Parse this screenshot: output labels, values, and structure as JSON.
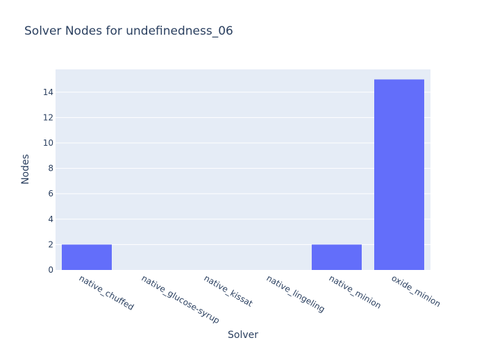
{
  "chart_data": {
    "type": "bar",
    "title": "Solver Nodes for undefinedness_06",
    "xlabel": "Solver",
    "ylabel": "Nodes",
    "categories": [
      "native_chuffed",
      "native_glucose-syrup",
      "native_kissat",
      "native_lingeling",
      "native_minion",
      "oxide_minion"
    ],
    "values": [
      2,
      0,
      0,
      0,
      2,
      15
    ],
    "ylim": [
      0,
      15.79
    ],
    "yticks": [
      0,
      2,
      4,
      6,
      8,
      10,
      12,
      14
    ],
    "grid": true,
    "colors": {
      "bar": "#636efa",
      "plot_bg": "#e5ecf6",
      "grid": "#ffffff",
      "text": "#2a3f5f"
    }
  }
}
